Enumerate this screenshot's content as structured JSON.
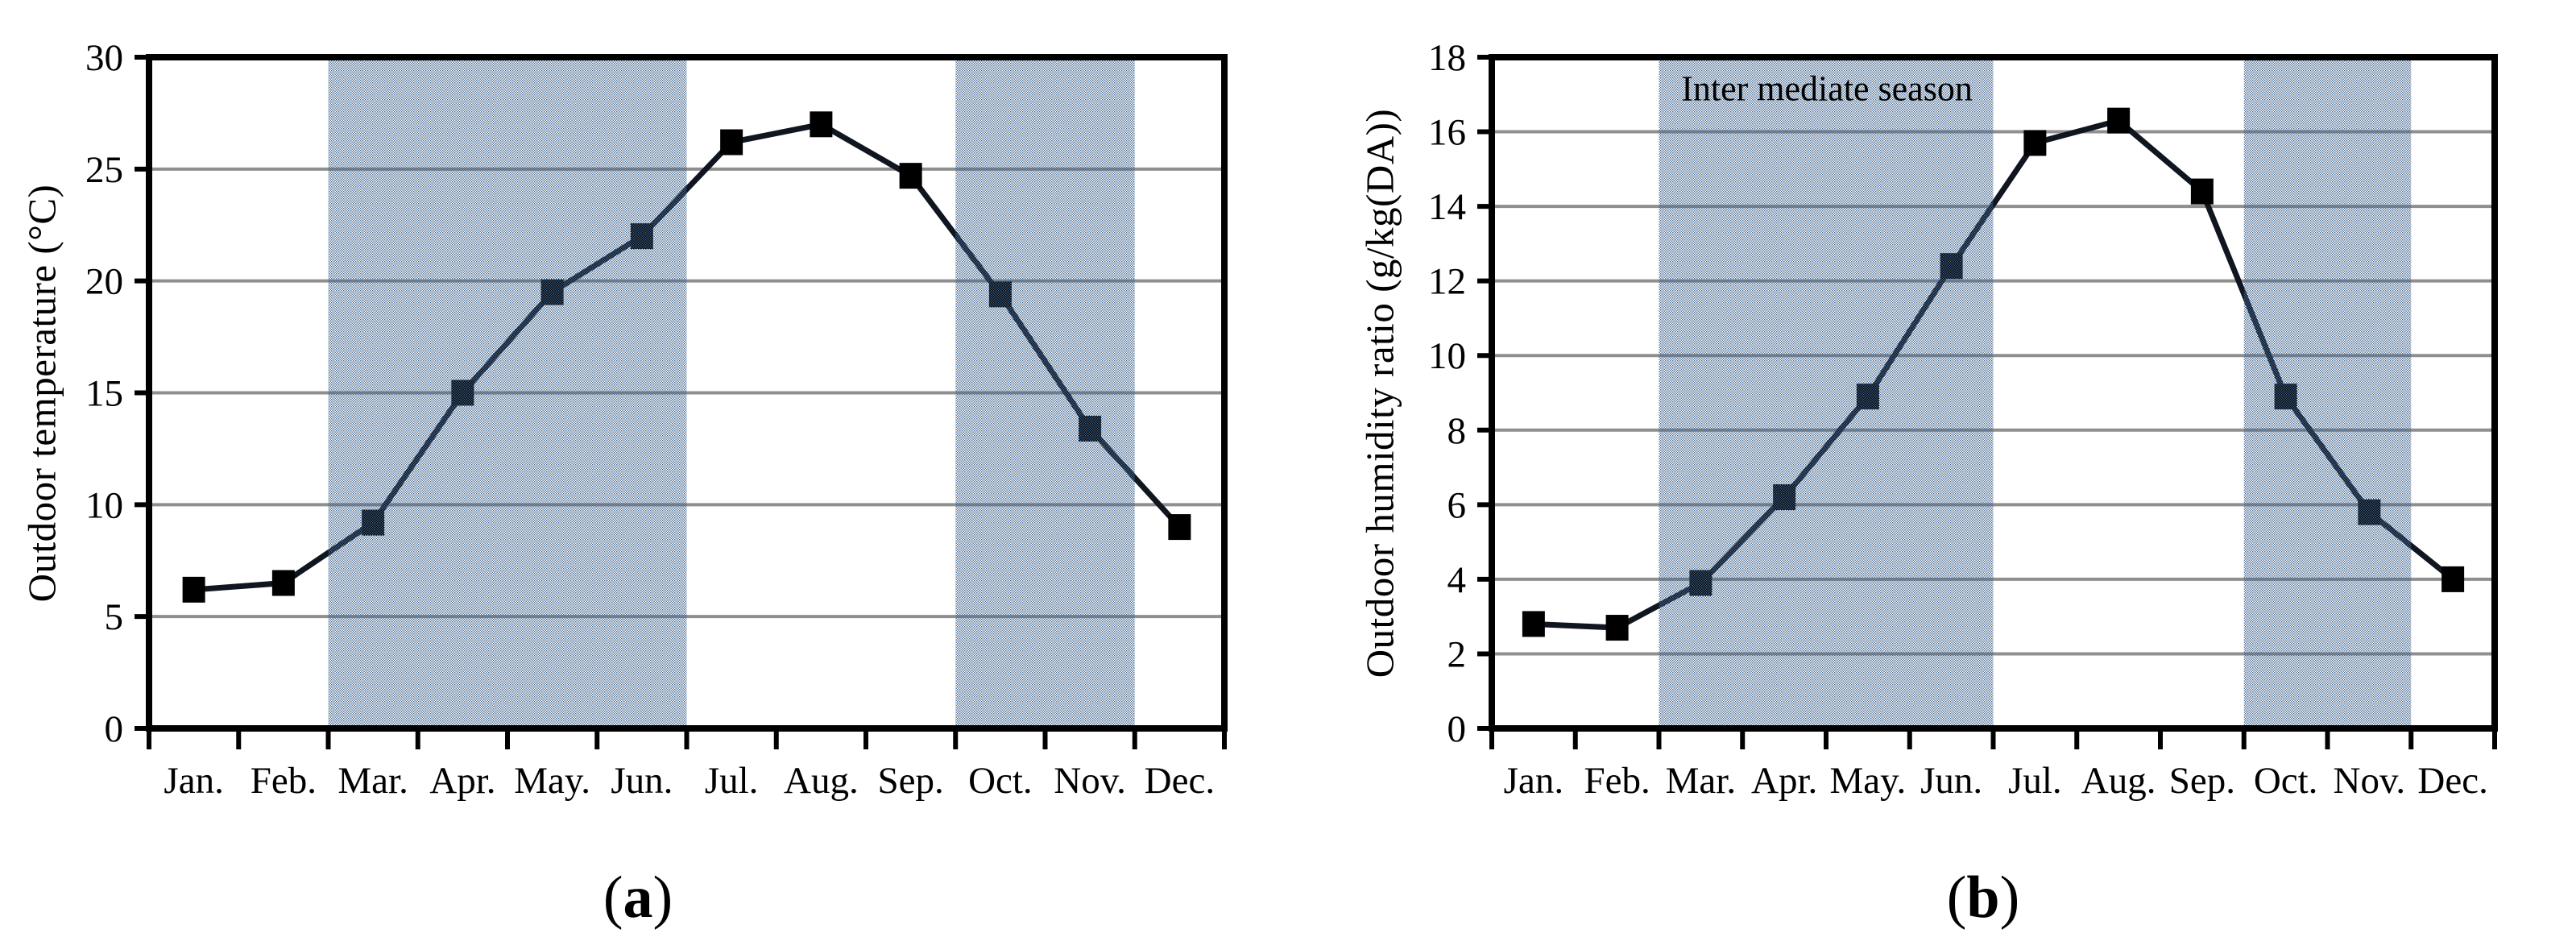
{
  "figure": {
    "background": "#ffffff",
    "panel_count": 2
  },
  "colors": {
    "band_dot": "#41658f",
    "band_base": "#ffffff",
    "grid": "#8f8f8f",
    "series_line": "#10161f",
    "marker": "#000000",
    "axis": "#000000",
    "text": "#000000"
  },
  "chart_data": [
    {
      "type": "line",
      "title": "",
      "caption": "(a)",
      "caption_open": "(",
      "caption_letter": "a",
      "caption_close": ")",
      "categories": [
        "Jan.",
        "Feb.",
        "Mar.",
        "Apr.",
        "May.",
        "Jun.",
        "Jul.",
        "Aug.",
        "Sep.",
        "Oct.",
        "Nov.",
        "Dec."
      ],
      "values": [
        6.2,
        6.5,
        9.2,
        15.0,
        19.5,
        22.0,
        26.2,
        27.0,
        24.7,
        19.4,
        13.4,
        9.0
      ],
      "xlabel": "",
      "ylabel": "Outdoor temperature (°C)",
      "ylim": [
        0,
        30
      ],
      "yticks": [
        0,
        5,
        10,
        15,
        20,
        25,
        30
      ],
      "grid": "horizontal",
      "legend": "none",
      "marker": "square",
      "annotation": "",
      "shaded_regions": [
        {
          "from": "Mar.",
          "to": "Jun.",
          "meaning": "intermediate season"
        },
        {
          "from": "Oct.",
          "to": "Nov.",
          "meaning": "intermediate season"
        }
      ]
    },
    {
      "type": "line",
      "title": "",
      "caption": "(b)",
      "caption_open": "(",
      "caption_letter": "b",
      "caption_close": ")",
      "categories": [
        "Jan.",
        "Feb.",
        "Mar.",
        "Apr.",
        "May.",
        "Jun.",
        "Jul.",
        "Aug.",
        "Sep.",
        "Oct.",
        "Nov.",
        "Dec."
      ],
      "values": [
        2.8,
        2.7,
        3.9,
        6.2,
        8.9,
        12.4,
        15.7,
        16.3,
        14.4,
        8.9,
        5.8,
        4.0
      ],
      "xlabel": "",
      "ylabel": "Outdoor humidity ratio (g/kg(DA))",
      "ylim": [
        0,
        18
      ],
      "yticks": [
        0,
        2,
        4,
        6,
        8,
        10,
        12,
        14,
        16,
        18
      ],
      "grid": "horizontal",
      "legend": "none",
      "marker": "square",
      "annotation": "Inter mediate season",
      "shaded_regions": [
        {
          "from": "Mar.",
          "to": "Jun.",
          "meaning": "intermediate season"
        },
        {
          "from": "Oct.",
          "to": "Nov.",
          "meaning": "intermediate season"
        }
      ]
    }
  ]
}
